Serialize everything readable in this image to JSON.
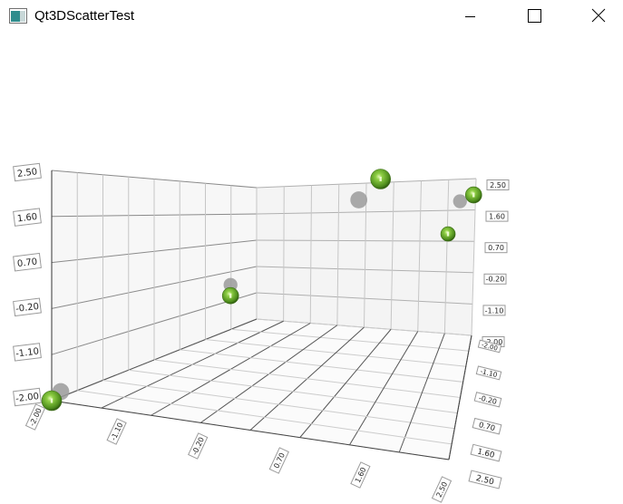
{
  "window": {
    "title": "Qt3DScatterTest",
    "controls": [
      "minimize-icon",
      "maximize-icon",
      "close-icon"
    ]
  },
  "chart_data": {
    "type": "scatter",
    "title": "",
    "yaxis": {
      "ticks_left": [
        "2.50",
        "1.60",
        "0.70",
        "-0.20",
        "-1.10",
        "-2.00"
      ],
      "ticks_right": [
        "2.50",
        "1.60",
        "0.70",
        "-0.20",
        "-1.10",
        "-2.00"
      ]
    },
    "xaxis": {
      "ticks": [
        "-2.00",
        "-1.10",
        "-0.20",
        "0.70",
        "1.60",
        "2.50"
      ]
    },
    "zaxis": {
      "ticks": [
        "-2.00",
        "-1.10",
        "-0.20",
        "0.70",
        "1.60",
        "2.50"
      ]
    },
    "grid": true,
    "series": [
      {
        "points": [
          {
            "x": -2.0,
            "y": -2.0,
            "z": 2.5
          },
          {
            "x": -0.2,
            "y": -0.2,
            "z": 0.2
          },
          {
            "x": 1.3,
            "y": 2.5,
            "z": -1.5
          },
          {
            "x": 2.3,
            "y": 2.1,
            "z": -1.3
          },
          {
            "x": 2.1,
            "y": 1.0,
            "z": 0.0
          }
        ]
      }
    ],
    "colors": {
      "point": "#6aa82e",
      "shadow": "#9a9a9a"
    }
  }
}
